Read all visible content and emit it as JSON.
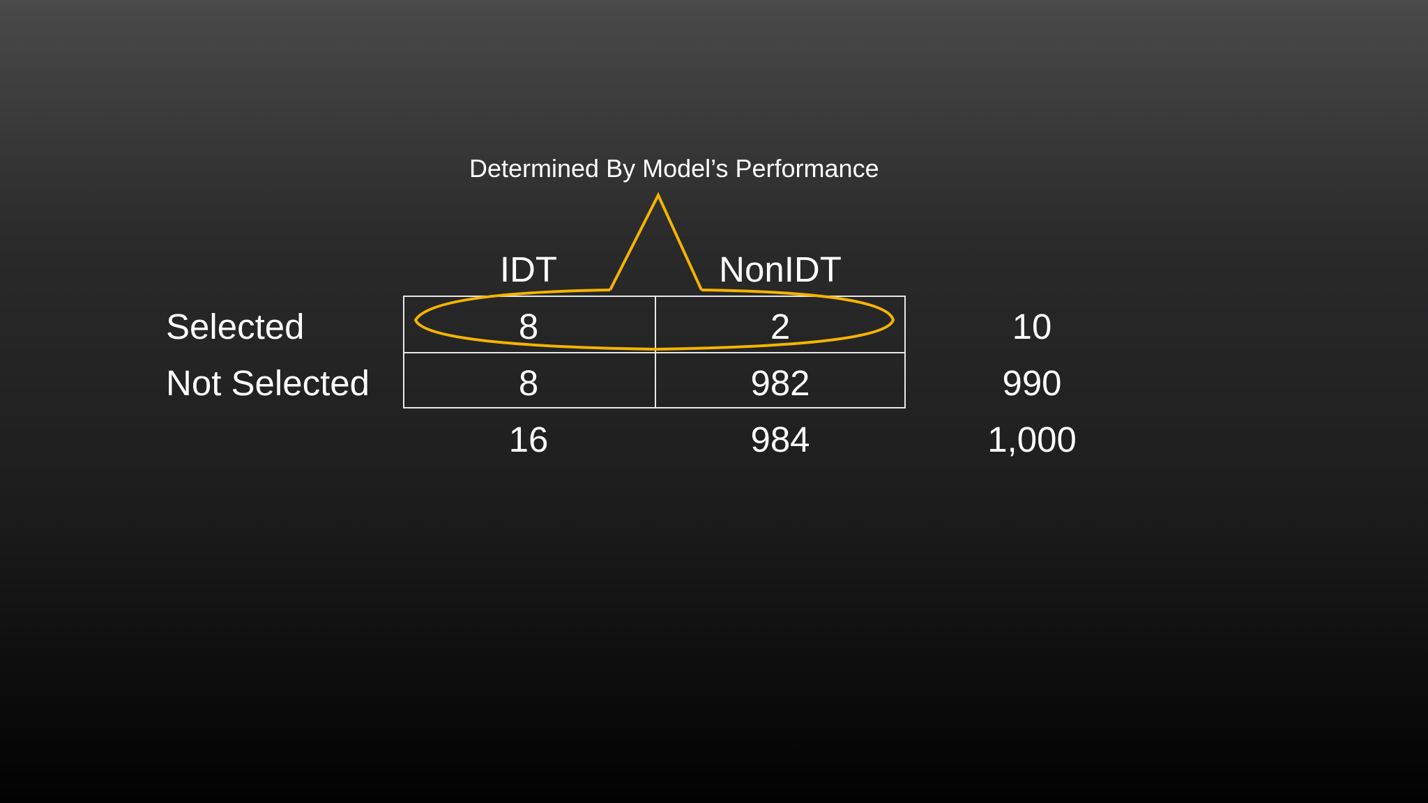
{
  "annotation": {
    "text": "Determined By Model’s Performance",
    "accent_color": "#f5b400"
  },
  "columns": [
    "IDT",
    "NonIDT"
  ],
  "rows": [
    {
      "label": "Selected",
      "values": [
        "8",
        "2"
      ],
      "total": "10"
    },
    {
      "label": "Not Selected",
      "values": [
        "8",
        "982"
      ],
      "total": "990"
    }
  ],
  "column_totals": [
    "16",
    "984"
  ],
  "grand_total": "1,000"
}
